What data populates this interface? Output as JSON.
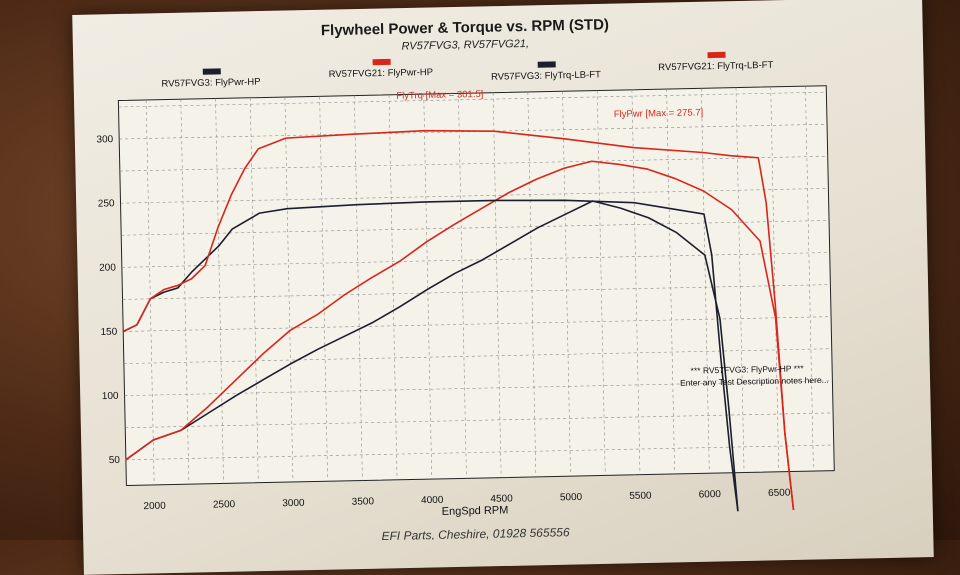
{
  "chart_data": {
    "type": "line",
    "title": "Flywheel Power & Torque vs. RPM (STD)",
    "subtitle": "RV57FVG3, RV57FVG21,",
    "xlabel": "EngSpd RPM",
    "ylabel": "",
    "xlim": [
      1800,
      6900
    ],
    "ylim": [
      30,
      330
    ],
    "x_ticks": [
      2000,
      2500,
      3000,
      3500,
      4000,
      4500,
      5000,
      5500,
      6000,
      6500
    ],
    "y_ticks": [
      50,
      100,
      150,
      200,
      250,
      300
    ],
    "grid": true,
    "legend_position": "top",
    "series": [
      {
        "name": "RV57FVG3: FlyPwr-HP",
        "color": "#1c1e2e",
        "x": [
          1800,
          2000,
          2200,
          2400,
          2600,
          2800,
          3000,
          3200,
          3400,
          3600,
          3800,
          4000,
          4200,
          4400,
          4600,
          4800,
          5000,
          5200,
          5400,
          5600,
          5800,
          6000,
          6100,
          6150,
          6200
        ],
        "y": [
          50,
          65,
          72,
          85,
          98,
          110,
          122,
          133,
          143,
          153,
          165,
          178,
          190,
          200,
          212,
          224,
          234,
          244,
          238,
          230,
          218,
          200,
          150,
          80,
          0
        ]
      },
      {
        "name": "RV57FVG21: FlyPwr-HP",
        "color": "#d8261a",
        "x": [
          1800,
          2000,
          2200,
          2400,
          2600,
          2800,
          3000,
          3200,
          3400,
          3600,
          3800,
          4000,
          4200,
          4400,
          4600,
          4800,
          5000,
          5200,
          5400,
          5600,
          5800,
          6000,
          6200,
          6400,
          6500,
          6550,
          6600
        ],
        "y": [
          50,
          65,
          72,
          90,
          110,
          130,
          148,
          160,
          175,
          188,
          200,
          215,
          228,
          240,
          252,
          262,
          270,
          275,
          272,
          268,
          260,
          250,
          235,
          210,
          150,
          60,
          0
        ]
      },
      {
        "name": "RV57FVG3: FlyTrq-LB-FT",
        "color": "#1c1e2e",
        "x": [
          1800,
          1900,
          2000,
          2100,
          2200,
          2300,
          2400,
          2500,
          2600,
          2800,
          3000,
          3500,
          4000,
          4500,
          5000,
          5500,
          6000,
          6050,
          6100,
          6150,
          6200
        ],
        "y": [
          150,
          155,
          175,
          180,
          183,
          195,
          205,
          215,
          228,
          240,
          243,
          245,
          246,
          246,
          245,
          242,
          232,
          200,
          120,
          50,
          0
        ]
      },
      {
        "name": "RV57FVG21: FlyTrq-LB-FT",
        "color": "#d8261a",
        "x": [
          1800,
          1900,
          2000,
          2100,
          2200,
          2300,
          2400,
          2500,
          2600,
          2700,
          2800,
          3000,
          3500,
          4000,
          4500,
          5000,
          5500,
          6000,
          6200,
          6400,
          6450,
          6500,
          6550,
          6600
        ],
        "y": [
          150,
          155,
          175,
          182,
          185,
          190,
          200,
          230,
          255,
          275,
          290,
          298,
          300,
          301.5,
          300,
          293,
          285,
          280,
          277,
          275,
          240,
          160,
          60,
          0
        ]
      }
    ],
    "annotations": [
      {
        "text": "FlyTrq [Max = 301.5]",
        "color": "#d8261a"
      },
      {
        "text": "FlyPwr [Max = 275.7]",
        "color": "#d8261a"
      },
      {
        "text": "*** RV57FVG3: FlyPwr-HP ***",
        "color": "#111111"
      },
      {
        "text": "Enter any Test Description notes here...",
        "color": "#111111"
      }
    ],
    "footer": "EFI Parts, Cheshire, 01928 565556"
  }
}
